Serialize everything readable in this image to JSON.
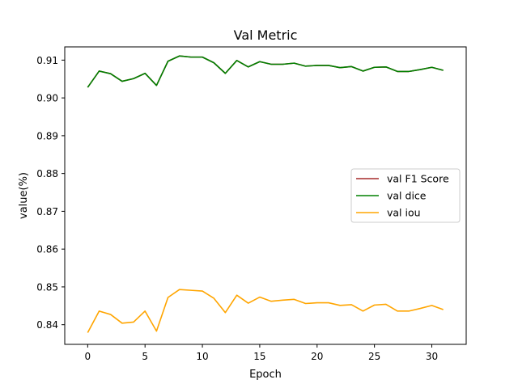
{
  "chart_data": {
    "type": "line",
    "title": "Val Metric",
    "xlabel": "Epoch",
    "ylabel": "value(%)",
    "xlim": [
      -2,
      33
    ],
    "ylim": [
      0.8348,
      0.9135
    ],
    "xticks": [
      0,
      5,
      10,
      15,
      20,
      25,
      30
    ],
    "yticks": [
      0.84,
      0.85,
      0.86,
      0.87,
      0.88,
      0.89,
      0.9,
      0.91
    ],
    "legend_position": "center-right",
    "x": [
      0,
      1,
      2,
      3,
      4,
      5,
      6,
      7,
      8,
      9,
      10,
      11,
      12,
      13,
      14,
      15,
      16,
      17,
      18,
      19,
      20,
      21,
      22,
      23,
      24,
      25,
      26,
      27,
      28,
      29,
      30,
      31
    ],
    "series": [
      {
        "name": "val F1 Score",
        "color": "#a52a2a",
        "values": [
          0.9028,
          0.9071,
          0.9064,
          0.9044,
          0.9051,
          0.9065,
          0.9033,
          0.9097,
          0.9111,
          0.9108,
          0.9108,
          0.9093,
          0.9065,
          0.9099,
          0.9082,
          0.9096,
          0.9089,
          0.9089,
          0.9092,
          0.9084,
          0.9086,
          0.9086,
          0.908,
          0.9083,
          0.9071,
          0.9081,
          0.9082,
          0.907,
          0.907,
          0.9075,
          0.9081,
          0.9073
        ]
      },
      {
        "name": "val dice",
        "color": "#008000",
        "values": [
          0.9028,
          0.9071,
          0.9064,
          0.9044,
          0.9051,
          0.9065,
          0.9033,
          0.9097,
          0.9111,
          0.9108,
          0.9108,
          0.9093,
          0.9065,
          0.9099,
          0.9082,
          0.9096,
          0.9089,
          0.9089,
          0.9092,
          0.9084,
          0.9086,
          0.9086,
          0.908,
          0.9083,
          0.9071,
          0.9081,
          0.9082,
          0.907,
          0.907,
          0.9075,
          0.9081,
          0.9073
        ]
      },
      {
        "name": "val iou",
        "color": "#ffa500",
        "values": [
          0.8379,
          0.8436,
          0.8427,
          0.8404,
          0.8407,
          0.8436,
          0.8383,
          0.8472,
          0.8493,
          0.8491,
          0.8489,
          0.847,
          0.8432,
          0.8478,
          0.8457,
          0.8473,
          0.8462,
          0.8465,
          0.8467,
          0.8456,
          0.8458,
          0.8458,
          0.8451,
          0.8453,
          0.8436,
          0.8452,
          0.8454,
          0.8436,
          0.8436,
          0.8443,
          0.8451,
          0.844
        ]
      }
    ]
  }
}
